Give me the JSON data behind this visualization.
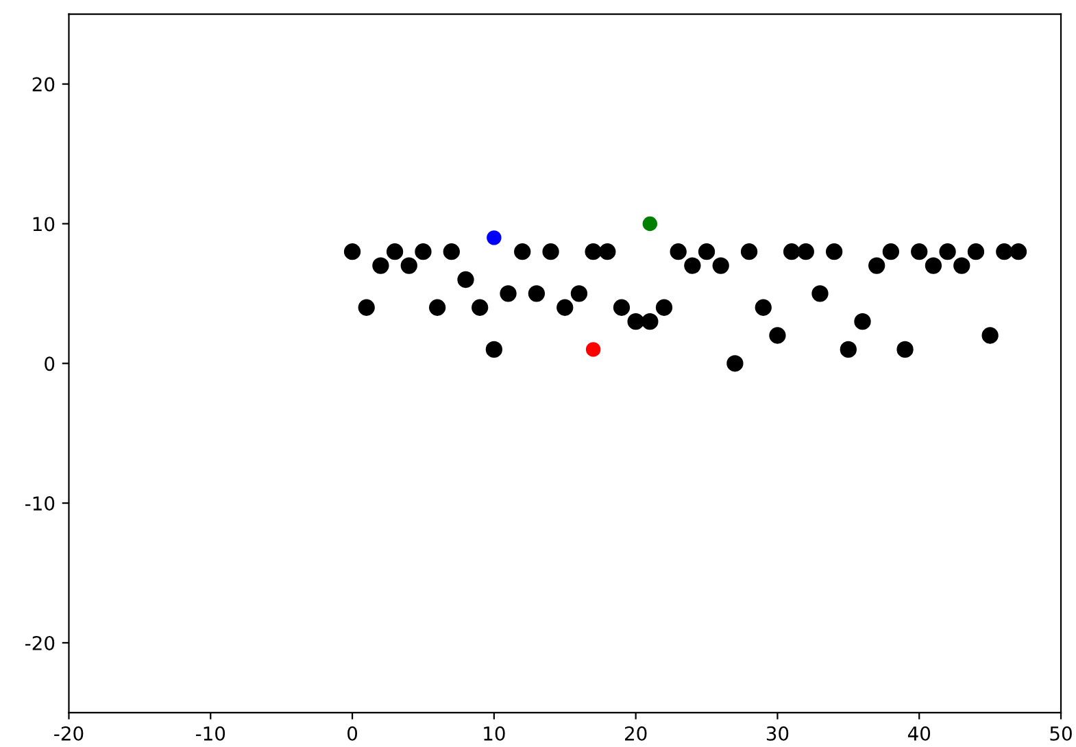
{
  "chart_data": {
    "type": "scatter",
    "xlim": [
      -20,
      50
    ],
    "ylim": [
      -25,
      25
    ],
    "xticks": [
      -20,
      -10,
      0,
      10,
      20,
      30,
      40,
      50
    ],
    "yticks": [
      -20,
      -10,
      0,
      10,
      20
    ],
    "marker": "circle",
    "grid": false,
    "legend": false,
    "series": [
      {
        "color": "#000000",
        "x": [
          0,
          1,
          2,
          3,
          4,
          5,
          6,
          7,
          8,
          9,
          10,
          11,
          12,
          13,
          14,
          15,
          16,
          17,
          18,
          19,
          20,
          21,
          22,
          23,
          24,
          25,
          26,
          27,
          28,
          29,
          30,
          31,
          32,
          33,
          34,
          35,
          36,
          37,
          38,
          39,
          40,
          41,
          42,
          43,
          44,
          45,
          46,
          47
        ],
        "values": [
          8,
          4,
          7,
          8,
          7,
          8,
          4,
          8,
          6,
          4,
          1,
          5,
          8,
          5,
          8,
          4,
          5,
          8,
          8,
          4,
          3,
          3,
          4,
          8,
          7,
          8,
          7,
          0,
          8,
          4,
          2,
          8,
          8,
          5,
          8,
          1,
          3,
          7,
          8,
          1,
          8,
          7,
          8,
          7,
          8,
          2,
          8,
          8
        ]
      },
      {
        "color": "#0000ff",
        "x": [
          10
        ],
        "values": [
          9
        ]
      },
      {
        "color": "#ff0000",
        "x": [
          17
        ],
        "values": [
          1
        ]
      },
      {
        "color": "#008000",
        "x": [
          21
        ],
        "values": [
          10
        ]
      }
    ]
  }
}
